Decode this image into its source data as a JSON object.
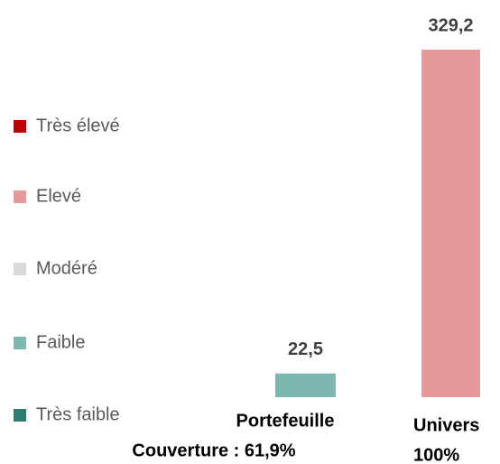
{
  "chart_data": {
    "type": "bar",
    "legend": [
      {
        "name": "Très élevé",
        "color": "#c00000"
      },
      {
        "name": "Elevé",
        "color": "#e6989a"
      },
      {
        "name": "Modéré",
        "color": "#d9d9d9"
      },
      {
        "name": "Faible",
        "color": "#7db8b0"
      },
      {
        "name": "Très faible",
        "color": "#2e7d73"
      }
    ],
    "categories": [
      "Portefeuille",
      "Univers"
    ],
    "coverage_labels": [
      "Couverture : 61,9%",
      "100%"
    ],
    "values": [
      22.5,
      329.2
    ],
    "value_labels": [
      "22,5",
      "329,2"
    ],
    "colors": [
      "#7db8b0",
      "#e6989a"
    ]
  }
}
